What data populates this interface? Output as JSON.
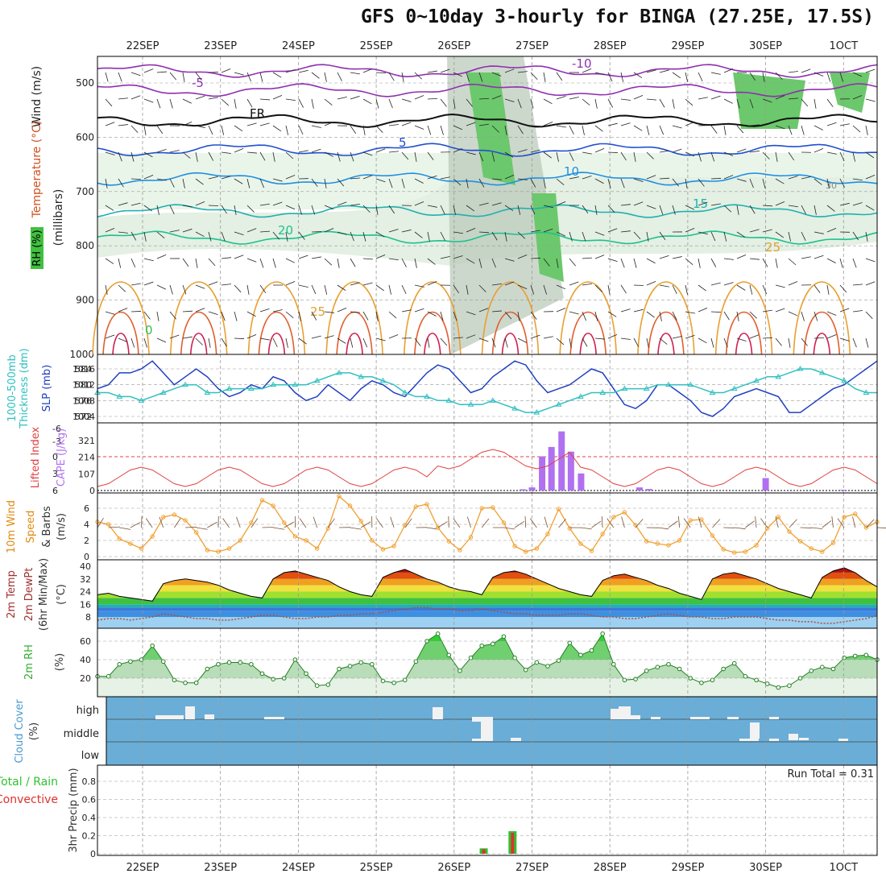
{
  "title": "GFS 0~10day 3-hourly for BINGA (27.25E, 17.5S)",
  "dates": [
    "22SEP",
    "23SEP",
    "24SEP",
    "25SEP",
    "26SEP",
    "27SEP",
    "28SEP",
    "29SEP",
    "30SEP",
    "1OCT"
  ],
  "colors": {
    "wind_speed": "#f0a030",
    "slp": "#2040c0",
    "thickness": "#30c0c0",
    "lifted_index": "#e04040",
    "cape": "#b070f0",
    "rh": "#30b030",
    "cloud_bg": "#6aaed8",
    "precip_total": "#30c030",
    "precip_conv": "#e03030"
  },
  "panels": {
    "cross_section": {
      "ylabel": "(millibars)",
      "labels": [
        "Wind (m/s)",
        "Temperature (°C)",
        "RH (%)"
      ],
      "yticks": [
        "500",
        "600",
        "700",
        "800",
        "900",
        "1000"
      ],
      "contour_labels": [
        "-10",
        "-5",
        "FR",
        "5",
        "10",
        "15",
        "20",
        "25",
        "0",
        "30"
      ]
    },
    "slp_thickness": {
      "labels": [
        "1000-500mb",
        "Thickness (dm)",
        "SLP (mb)"
      ],
      "yticks_left": [
        "584",
        "580",
        "576",
        "572"
      ],
      "yticks_right": [
        "1016",
        "1012",
        "1008",
        "1004"
      ]
    },
    "cape_li": {
      "labels": [
        "Lifted Index",
        "CAPE (J/kg)"
      ],
      "yticks_left": [
        "-6",
        "-3",
        "0",
        "3",
        "6"
      ],
      "yticks_right": [
        "321",
        "214",
        "107",
        "0"
      ]
    },
    "wind10m": {
      "labels": [
        "10m Wind",
        "Speed",
        "& Barbs",
        "(m/s)"
      ],
      "yticks": [
        "6",
        "4",
        "2",
        "0"
      ]
    },
    "temp2m": {
      "labels": [
        "2m Temp",
        "2m DewPt",
        "(6hr Min/Max)",
        "(°C)"
      ],
      "yticks": [
        "40",
        "32",
        "24",
        "16",
        "8"
      ]
    },
    "rh2m": {
      "labels": [
        "2m RH",
        "(%)"
      ],
      "yticks": [
        "60",
        "40",
        "20"
      ]
    },
    "cloud": {
      "labels": [
        "Cloud Cover",
        "(%)"
      ],
      "levels": [
        "high",
        "middle",
        "low"
      ]
    },
    "precip": {
      "labels": [
        "Total / Rain",
        "Convective",
        "3hr Precip (mm)"
      ],
      "yticks": [
        "0.8",
        "0.6",
        "0.4",
        "0.2",
        "0"
      ],
      "run_total": "Run Total = 0.31"
    }
  },
  "chart_data": [
    {
      "type": "line",
      "name": "SLP and 1000-500mb thickness",
      "x_unit": "days from 21SEP 12Z",
      "series": [
        {
          "name": "SLP (mb)",
          "values": [
            1011,
            1012,
            1015,
            1015,
            1016,
            1018,
            1015,
            1012,
            1014,
            1016,
            1014,
            1011,
            1009,
            1010,
            1012,
            1011,
            1014,
            1013,
            1010,
            1008,
            1009,
            1012,
            1010,
            1008,
            1011,
            1013,
            1012,
            1010,
            1009,
            1012,
            1015,
            1017,
            1016,
            1013,
            1010,
            1011,
            1014,
            1016,
            1018,
            1017,
            1013,
            1010,
            1011,
            1012,
            1014,
            1016,
            1015,
            1011,
            1007,
            1006,
            1008,
            1012,
            1012,
            1010,
            1008,
            1005,
            1004,
            1006,
            1009,
            1010,
            1011,
            1010,
            1009,
            1005,
            1005,
            1007,
            1009,
            1011,
            1012,
            1014,
            1016,
            1018
          ]
        },
        {
          "name": "Thickness (dm)",
          "values": [
            578,
            578,
            577,
            577,
            576,
            577,
            578,
            579,
            580,
            580,
            578,
            578,
            579,
            579,
            579,
            579,
            580,
            580,
            580,
            580,
            581,
            582,
            583,
            583,
            582,
            582,
            581,
            580,
            578,
            577,
            577,
            576,
            576,
            575,
            575,
            575,
            576,
            575,
            574,
            573,
            573,
            574,
            575,
            576,
            577,
            578,
            578,
            578,
            579,
            579,
            579,
            580,
            580,
            580,
            580,
            579,
            578,
            578,
            579,
            580,
            581,
            582,
            582,
            583,
            584,
            584,
            583,
            582,
            581,
            579,
            578,
            578
          ]
        }
      ]
    },
    {
      "type": "bar",
      "name": "CAPE (J/kg)",
      "x": [
        4.88,
        5.0,
        5.13,
        5.25,
        5.38,
        5.5,
        5.63,
        6.38,
        6.5,
        8.0,
        9.0
      ],
      "values": [
        8,
        20,
        220,
        280,
        380,
        250,
        110,
        20,
        10,
        80,
        5
      ]
    },
    {
      "type": "line",
      "name": "10m wind speed (m/s)",
      "values": [
        4.3,
        4.0,
        2.2,
        1.6,
        1.0,
        2.5,
        4.9,
        5.2,
        4.5,
        3.0,
        0.8,
        0.6,
        1.0,
        2.0,
        4.2,
        7.0,
        6.3,
        4.2,
        2.5,
        2.0,
        1.0,
        3.5,
        7.5,
        6.3,
        4.4,
        2.0,
        0.9,
        1.3,
        3.9,
        6.2,
        6.5,
        3.6,
        1.9,
        0.8,
        2.4,
        6.0,
        6.1,
        4.2,
        1.3,
        0.6,
        1.0,
        2.8,
        5.9,
        3.5,
        1.6,
        0.7,
        2.8,
        4.9,
        5.5,
        3.9,
        1.9,
        1.6,
        1.4,
        2.0,
        4.5,
        4.6,
        2.6,
        0.9,
        0.5,
        0.6,
        1.4,
        3.5,
        4.9,
        3.1,
        1.9,
        1.0,
        0.6,
        1.7,
        4.9,
        5.3,
        3.6,
        4.3
      ]
    },
    {
      "type": "area",
      "name": "2m temperature (°C)",
      "values": [
        22,
        23,
        21,
        20,
        19,
        18,
        29,
        31,
        32,
        31,
        30,
        28,
        25,
        23,
        21,
        20,
        32,
        36,
        37,
        35,
        33,
        31,
        27,
        24,
        22,
        21,
        33,
        36,
        38,
        35,
        32,
        30,
        27,
        25,
        24,
        22,
        33,
        36,
        37,
        35,
        32,
        29,
        26,
        24,
        22,
        21,
        31,
        34,
        35,
        33,
        31,
        28,
        26,
        23,
        21,
        19,
        32,
        35,
        36,
        34,
        32,
        29,
        26,
        24,
        22,
        20,
        33,
        37,
        39,
        36,
        31,
        27
      ]
    },
    {
      "type": "line",
      "name": "2m dew point (°C)",
      "values": [
        6,
        7,
        7,
        6,
        7,
        8,
        10,
        9,
        8,
        7,
        7,
        6,
        6,
        7,
        8,
        9,
        9,
        8,
        7,
        7,
        8,
        8,
        9,
        9,
        10,
        10,
        11,
        12,
        13,
        14,
        14,
        13,
        13,
        12,
        12,
        13,
        12,
        11,
        10,
        10,
        9,
        9,
        9,
        10,
        10,
        9,
        8,
        8,
        7,
        7,
        8,
        9,
        10,
        9,
        8,
        8,
        7,
        7,
        8,
        8,
        8,
        7,
        6,
        6,
        5,
        5,
        4,
        4,
        5,
        6,
        7,
        9
      ]
    },
    {
      "type": "area",
      "name": "2m RH (%)",
      "values": [
        22,
        22,
        35,
        38,
        40,
        55,
        38,
        18,
        15,
        15,
        30,
        35,
        37,
        37,
        35,
        25,
        19,
        20,
        40,
        25,
        12,
        13,
        30,
        33,
        37,
        35,
        17,
        15,
        18,
        38,
        60,
        68,
        45,
        28,
        42,
        55,
        57,
        65,
        42,
        29,
        37,
        33,
        39,
        58,
        45,
        50,
        68,
        35,
        18,
        19,
        28,
        32,
        35,
        30,
        20,
        15,
        18,
        30,
        36,
        22,
        18,
        14,
        10,
        12,
        20,
        28,
        32,
        30,
        42,
        44,
        45,
        40
      ]
    },
    {
      "type": "bar",
      "name": "3hr Precip (mm)",
      "series": [
        {
          "name": "Total / Rain",
          "x": [
            4.38,
            4.75
          ],
          "values": [
            0.06,
            0.25
          ]
        },
        {
          "name": "Convective",
          "x": [
            4.38,
            4.75
          ],
          "values": [
            0.05,
            0.23
          ]
        }
      ],
      "ylim": [
        0,
        1.0
      ]
    }
  ]
}
